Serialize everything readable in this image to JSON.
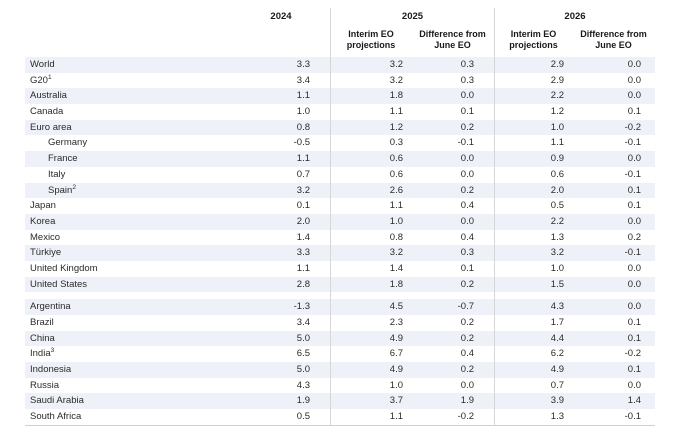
{
  "colors": {
    "row_stripe": "#eff1f9",
    "divider_rule": "#d6d6d6",
    "bottom_rule": "#ccd0da",
    "text": "#2b2b2b"
  },
  "chart_data": {
    "type": "table",
    "years": [
      "2024",
      "2025",
      "2026"
    ],
    "sub_headers": [
      "Interim EO\nprojections",
      "Difference from\nJune EO"
    ],
    "column_keys": [
      "2024",
      "2025 Interim EO projections",
      "2025 Difference from June EO",
      "2026 Interim EO projections",
      "2026 Difference from June EO"
    ],
    "sections": [
      {
        "rows": [
          {
            "label": "World",
            "sup": "",
            "indent": false,
            "values": [
              "3.3",
              "3.2",
              "0.3",
              "2.9",
              "0.0"
            ]
          },
          {
            "label": "G20",
            "sup": "1",
            "indent": false,
            "values": [
              "3.4",
              "3.2",
              "0.3",
              "2.9",
              "0.0"
            ]
          },
          {
            "label": "Australia",
            "sup": "",
            "indent": false,
            "values": [
              "1.1",
              "1.8",
              "0.0",
              "2.2",
              "0.0"
            ]
          },
          {
            "label": "Canada",
            "sup": "",
            "indent": false,
            "values": [
              "1.0",
              "1.1",
              "0.1",
              "1.2",
              "0.1"
            ]
          },
          {
            "label": "Euro area",
            "sup": "",
            "indent": false,
            "values": [
              "0.8",
              "1.2",
              "0.2",
              "1.0",
              "-0.2"
            ]
          },
          {
            "label": "Germany",
            "sup": "",
            "indent": true,
            "values": [
              "-0.5",
              "0.3",
              "-0.1",
              "1.1",
              "-0.1"
            ]
          },
          {
            "label": "France",
            "sup": "",
            "indent": true,
            "values": [
              "1.1",
              "0.6",
              "0.0",
              "0.9",
              "0.0"
            ]
          },
          {
            "label": "Italy",
            "sup": "",
            "indent": true,
            "values": [
              "0.7",
              "0.6",
              "0.0",
              "0.6",
              "-0.1"
            ]
          },
          {
            "label": "Spain",
            "sup": "2",
            "indent": true,
            "values": [
              "3.2",
              "2.6",
              "0.2",
              "2.0",
              "0.1"
            ]
          },
          {
            "label": "Japan",
            "sup": "",
            "indent": false,
            "values": [
              "0.1",
              "1.1",
              "0.4",
              "0.5",
              "0.1"
            ]
          },
          {
            "label": "Korea",
            "sup": "",
            "indent": false,
            "values": [
              "2.0",
              "1.0",
              "0.0",
              "2.2",
              "0.0"
            ]
          },
          {
            "label": "Mexico",
            "sup": "",
            "indent": false,
            "values": [
              "1.4",
              "0.8",
              "0.4",
              "1.3",
              "0.2"
            ]
          },
          {
            "label": "Türkiye",
            "sup": "",
            "indent": false,
            "values": [
              "3.3",
              "3.2",
              "0.3",
              "3.2",
              "-0.1"
            ]
          },
          {
            "label": "United Kingdom",
            "sup": "",
            "indent": false,
            "values": [
              "1.1",
              "1.4",
              "0.1",
              "1.0",
              "0.0"
            ]
          },
          {
            "label": "United States",
            "sup": "",
            "indent": false,
            "values": [
              "2.8",
              "1.8",
              "0.2",
              "1.5",
              "0.0"
            ]
          }
        ]
      },
      {
        "rows": [
          {
            "label": "Argentina",
            "sup": "",
            "indent": false,
            "values": [
              "-1.3",
              "4.5",
              "-0.7",
              "4.3",
              "0.0"
            ]
          },
          {
            "label": "Brazil",
            "sup": "",
            "indent": false,
            "values": [
              "3.4",
              "2.3",
              "0.2",
              "1.7",
              "0.1"
            ]
          },
          {
            "label": "China",
            "sup": "",
            "indent": false,
            "values": [
              "5.0",
              "4.9",
              "0.2",
              "4.4",
              "0.1"
            ]
          },
          {
            "label": "India",
            "sup": "3",
            "indent": false,
            "values": [
              "6.5",
              "6.7",
              "0.4",
              "6.2",
              "-0.2"
            ]
          },
          {
            "label": "Indonesia",
            "sup": "",
            "indent": false,
            "values": [
              "5.0",
              "4.9",
              "0.2",
              "4.9",
              "0.1"
            ]
          },
          {
            "label": "Russia",
            "sup": "",
            "indent": false,
            "values": [
              "4.3",
              "1.0",
              "0.0",
              "0.7",
              "0.0"
            ]
          },
          {
            "label": "Saudi Arabia",
            "sup": "",
            "indent": false,
            "values": [
              "1.9",
              "3.7",
              "1.9",
              "3.9",
              "1.4"
            ]
          },
          {
            "label": "South Africa",
            "sup": "",
            "indent": false,
            "values": [
              "0.5",
              "1.1",
              "-0.2",
              "1.3",
              "-0.1"
            ]
          }
        ]
      }
    ]
  }
}
